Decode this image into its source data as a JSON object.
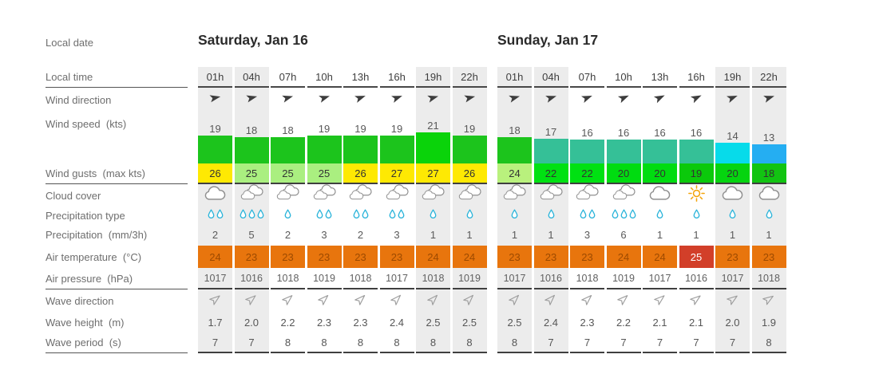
{
  "row_labels": {
    "local_date": "Local date",
    "local_time": "Local time",
    "wind_direction": "Wind direction",
    "wind_speed": "Wind speed  (kts)",
    "wind_gusts": "Wind gusts  (max kts)",
    "cloud_cover": "Cloud cover",
    "precip_type": "Precipitation type",
    "precip": "Precipitation  (mm/3h)",
    "air_temp": "Air temperature  (°C)",
    "air_pressure": "Air pressure  (hPa)",
    "wave_direction": "Wave direction",
    "wave_height": "Wave height  (m)",
    "wave_period": "Wave period  (s)"
  },
  "colors": {
    "night_column_bg": "#ececec",
    "drop": "#2bb4da",
    "cloud_stroke": "#909090",
    "sun": "#f3a40a",
    "wind_arrow": "#3d3d3d",
    "wave_arrow": "#9d9d9d"
  },
  "chart_data": {
    "type": "table",
    "note": "wind speed bars are proportional to kts; bar and gust cell colors encode speed"
  },
  "days": [
    {
      "title": "Saturday, Jan 16",
      "columns": [
        {
          "time": "01h",
          "night": true,
          "wind_deg": 78,
          "wind_speed": 19,
          "bar_color": "#1cc41c",
          "gust": 26,
          "gust_bg": "#fee903",
          "cloud": "cloud",
          "drops": 2,
          "precip": 2,
          "temp": 24,
          "temp_bg": "#e8750d",
          "temp_fg": "#9d4a00",
          "pressure": 1017,
          "wave_deg": 52,
          "wave_height": "1.7",
          "wave_period": "7"
        },
        {
          "time": "04h",
          "night": true,
          "wind_deg": 76,
          "wind_speed": 18,
          "bar_color": "#1cc41c",
          "gust": 25,
          "gust_bg": "#aaef80",
          "cloud": "clouds",
          "drops": 3,
          "precip": 5,
          "temp": 23,
          "temp_bg": "#e8750d",
          "temp_fg": "#9d4a00",
          "pressure": 1016,
          "wave_deg": 50,
          "wave_height": "2.0",
          "wave_period": "7"
        },
        {
          "time": "07h",
          "night": false,
          "wind_deg": 74,
          "wind_speed": 18,
          "bar_color": "#1cc41c",
          "gust": 25,
          "gust_bg": "#aaef80",
          "cloud": "clouds",
          "drops": 1,
          "precip": 2,
          "temp": 23,
          "temp_bg": "#e8750d",
          "temp_fg": "#9d4a00",
          "pressure": 1018,
          "wave_deg": 48,
          "wave_height": "2.2",
          "wave_period": "8"
        },
        {
          "time": "10h",
          "night": false,
          "wind_deg": 72,
          "wind_speed": 19,
          "bar_color": "#1cc41c",
          "gust": 25,
          "gust_bg": "#aaef80",
          "cloud": "clouds",
          "drops": 2,
          "precip": 3,
          "temp": 23,
          "temp_bg": "#e8750d",
          "temp_fg": "#9d4a00",
          "pressure": 1019,
          "wave_deg": 46,
          "wave_height": "2.3",
          "wave_period": "8"
        },
        {
          "time": "13h",
          "night": false,
          "wind_deg": 70,
          "wind_speed": 19,
          "bar_color": "#1cc41c",
          "gust": 26,
          "gust_bg": "#fee903",
          "cloud": "clouds",
          "drops": 2,
          "precip": 2,
          "temp": 23,
          "temp_bg": "#e8750d",
          "temp_fg": "#9d4a00",
          "pressure": 1018,
          "wave_deg": 46,
          "wave_height": "2.3",
          "wave_period": "8"
        },
        {
          "time": "16h",
          "night": false,
          "wind_deg": 70,
          "wind_speed": 19,
          "bar_color": "#1cc41c",
          "gust": 27,
          "gust_bg": "#fee903",
          "cloud": "clouds",
          "drops": 2,
          "precip": 3,
          "temp": 23,
          "temp_bg": "#e8750d",
          "temp_fg": "#9d4a00",
          "pressure": 1017,
          "wave_deg": 44,
          "wave_height": "2.4",
          "wave_period": "8"
        },
        {
          "time": "19h",
          "night": true,
          "wind_deg": 74,
          "wind_speed": 21,
          "bar_color": "#0ad30a",
          "gust": 27,
          "gust_bg": "#fee903",
          "cloud": "clouds",
          "drops": 1,
          "precip": 1,
          "temp": 24,
          "temp_bg": "#e8750d",
          "temp_fg": "#9d4a00",
          "pressure": 1018,
          "wave_deg": 44,
          "wave_height": "2.5",
          "wave_period": "8"
        },
        {
          "time": "22h",
          "night": true,
          "wind_deg": 76,
          "wind_speed": 19,
          "bar_color": "#1cc41c",
          "gust": 26,
          "gust_bg": "#fee903",
          "cloud": "clouds",
          "drops": 1,
          "precip": 1,
          "temp": 24,
          "temp_bg": "#e8750d",
          "temp_fg": "#9d4a00",
          "pressure": 1019,
          "wave_deg": 44,
          "wave_height": "2.5",
          "wave_period": "8"
        }
      ]
    },
    {
      "title": "Sunday, Jan 17",
      "columns": [
        {
          "time": "01h",
          "night": true,
          "wind_deg": 74,
          "wind_speed": 18,
          "bar_color": "#1cc41c",
          "gust": 24,
          "gust_bg": "#b9f17d",
          "cloud": "clouds",
          "drops": 1,
          "precip": 1,
          "temp": 23,
          "temp_bg": "#e8750d",
          "temp_fg": "#9d4a00",
          "pressure": 1017,
          "wave_deg": 44,
          "wave_height": "2.5",
          "wave_period": "8"
        },
        {
          "time": "04h",
          "night": true,
          "wind_deg": 72,
          "wind_speed": 17,
          "bar_color": "#35c097",
          "gust": 22,
          "gust_bg": "#00e112",
          "cloud": "clouds",
          "drops": 1,
          "precip": 1,
          "temp": 23,
          "temp_bg": "#e8750d",
          "temp_fg": "#9d4a00",
          "pressure": 1016,
          "wave_deg": 44,
          "wave_height": "2.4",
          "wave_period": "7"
        },
        {
          "time": "07h",
          "night": false,
          "wind_deg": 68,
          "wind_speed": 16,
          "bar_color": "#35c097",
          "gust": 22,
          "gust_bg": "#00e112",
          "cloud": "clouds",
          "drops": 2,
          "precip": 3,
          "temp": 23,
          "temp_bg": "#e8750d",
          "temp_fg": "#9d4a00",
          "pressure": 1018,
          "wave_deg": 46,
          "wave_height": "2.3",
          "wave_period": "7"
        },
        {
          "time": "10h",
          "night": false,
          "wind_deg": 66,
          "wind_speed": 16,
          "bar_color": "#35c097",
          "gust": 20,
          "gust_bg": "#00dc10",
          "cloud": "clouds",
          "drops": 3,
          "precip": 6,
          "temp": 24,
          "temp_bg": "#e8750d",
          "temp_fg": "#9d4a00",
          "pressure": 1019,
          "wave_deg": 48,
          "wave_height": "2.2",
          "wave_period": "7"
        },
        {
          "time": "13h",
          "night": false,
          "wind_deg": 64,
          "wind_speed": 16,
          "bar_color": "#35c097",
          "gust": 20,
          "gust_bg": "#00dc10",
          "cloud": "cloud",
          "drops": 1,
          "precip": 1,
          "temp": 24,
          "temp_bg": "#e8750d",
          "temp_fg": "#9d4a00",
          "pressure": 1017,
          "wave_deg": 50,
          "wave_height": "2.1",
          "wave_period": "7"
        },
        {
          "time": "16h",
          "night": false,
          "wind_deg": 64,
          "wind_speed": 16,
          "bar_color": "#35c097",
          "gust": 19,
          "gust_bg": "#0bc90b",
          "cloud": "sun",
          "drops": 1,
          "precip": 1,
          "temp": 25,
          "temp_bg": "#d23f29",
          "temp_fg": "#ffffff",
          "pressure": 1016,
          "wave_deg": 52,
          "wave_height": "2.1",
          "wave_period": "7"
        },
        {
          "time": "19h",
          "night": true,
          "wind_deg": 68,
          "wind_speed": 14,
          "bar_color": "#07dbea",
          "gust": 20,
          "gust_bg": "#05d40f",
          "cloud": "cloud",
          "drops": 1,
          "precip": 1,
          "temp": 23,
          "temp_bg": "#e8750d",
          "temp_fg": "#9d4a00",
          "pressure": 1017,
          "wave_deg": 54,
          "wave_height": "2.0",
          "wave_period": "7"
        },
        {
          "time": "22h",
          "night": true,
          "wind_deg": 72,
          "wind_speed": 13,
          "bar_color": "#25aef2",
          "gust": 18,
          "gust_bg": "#12c412",
          "cloud": "cloud",
          "drops": 1,
          "precip": 1,
          "temp": 23,
          "temp_bg": "#e8750d",
          "temp_fg": "#9d4a00",
          "pressure": 1018,
          "wave_deg": 56,
          "wave_height": "1.9",
          "wave_period": "8"
        }
      ]
    }
  ]
}
